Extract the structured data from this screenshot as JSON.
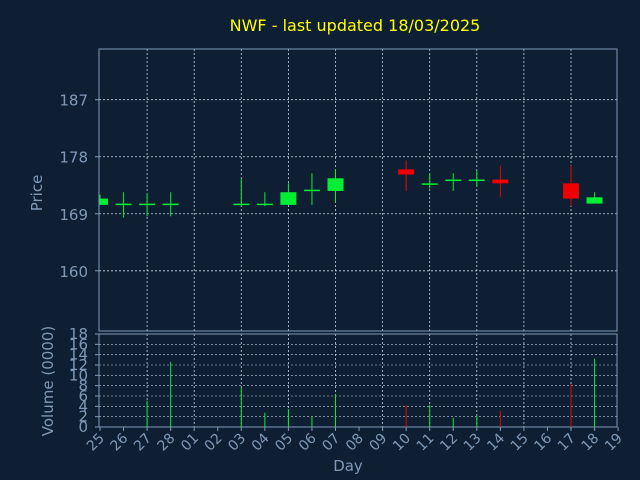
{
  "chart_data": {
    "type": "candlestick",
    "title": "NWF - last updated 18/03/2025",
    "xlabel": "Day",
    "price_ylabel": "Price",
    "volume_ylabel": "Volume (0000)",
    "price_yticks": [
      160,
      169,
      178,
      187
    ],
    "price_ylim": [
      150.5,
      195
    ],
    "volume_yticks": [
      0,
      2,
      4,
      6,
      8,
      10,
      12,
      14,
      16,
      18
    ],
    "volume_ylim": [
      0,
      18
    ],
    "x_tick_labels": [
      "25",
      "26",
      "27",
      "28",
      "01",
      "02",
      "03",
      "04",
      "05",
      "06",
      "07",
      "08",
      "09",
      "10",
      "11",
      "12",
      "13",
      "14",
      "15",
      "16",
      "17",
      "18",
      "19"
    ],
    "grid": true,
    "colors": {
      "background": "#0f1f33",
      "plot_border": "#7f99b8",
      "grid": "#c8d2de",
      "title": "#ffff00",
      "axis_text": "#7f99b8",
      "up": "#00ee33",
      "down": "#ee0000"
    },
    "candles": [
      {
        "day": "25",
        "open": 170.4,
        "high": 172.0,
        "low": 170.4,
        "close": 171.4,
        "volume": 0
      },
      {
        "day": "26",
        "open": 170.4,
        "high": 172.4,
        "low": 168.4,
        "close": 170.6,
        "volume": 0
      },
      {
        "day": "27",
        "open": 170.4,
        "high": 172.3,
        "low": 168.6,
        "close": 170.6,
        "volume": 5.1
      },
      {
        "day": "28",
        "open": 170.4,
        "high": 172.4,
        "low": 168.6,
        "close": 170.6,
        "volume": 12.6
      },
      {
        "day": "03",
        "open": 170.4,
        "high": 174.6,
        "low": 170.2,
        "close": 170.6,
        "volume": 7.6
      },
      {
        "day": "04",
        "open": 170.4,
        "high": 172.4,
        "low": 170.2,
        "close": 170.6,
        "volume": 2.8
      },
      {
        "day": "05",
        "open": 170.4,
        "high": 173.8,
        "low": 170.4,
        "close": 172.4,
        "volume": 3.5
      },
      {
        "day": "06",
        "open": 172.6,
        "high": 175.4,
        "low": 170.4,
        "close": 172.8,
        "volume": 2.0
      },
      {
        "day": "07",
        "open": 172.6,
        "high": 176.0,
        "low": 170.8,
        "close": 174.6,
        "volume": 6.4
      },
      {
        "day": "10",
        "open": 176.0,
        "high": 177.4,
        "low": 172.6,
        "close": 175.2,
        "volume": 4.2
      },
      {
        "day": "11",
        "open": 173.6,
        "high": 175.4,
        "low": 173.0,
        "close": 173.8,
        "volume": 4.3
      },
      {
        "day": "12",
        "open": 174.2,
        "high": 175.4,
        "low": 172.6,
        "close": 174.4,
        "volume": 1.8
      },
      {
        "day": "13",
        "open": 174.2,
        "high": 175.8,
        "low": 173.2,
        "close": 174.4,
        "volume": 2.2
      },
      {
        "day": "14",
        "open": 174.4,
        "high": 176.6,
        "low": 171.6,
        "close": 173.8,
        "volume": 3.1
      },
      {
        "day": "17",
        "open": 173.8,
        "high": 176.6,
        "low": 170.2,
        "close": 171.4,
        "volume": 8.3
      },
      {
        "day": "18",
        "open": 170.6,
        "high": 172.4,
        "low": 170.6,
        "close": 171.6,
        "volume": 13.2
      }
    ]
  }
}
